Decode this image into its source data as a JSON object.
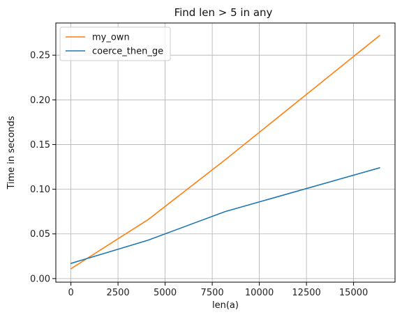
{
  "chart_data": {
    "type": "line",
    "title": "Find len > 5 in any",
    "xlabel": "len(a)",
    "ylabel": "Time in seconds",
    "xlim": [
      -800,
      17200
    ],
    "ylim": [
      -0.004,
      0.286
    ],
    "xticks": [
      0,
      2500,
      5000,
      7500,
      10000,
      12500,
      15000
    ],
    "xtick_labels": [
      "0",
      "2500",
      "5000",
      "7500",
      "10000",
      "12500",
      "15000"
    ],
    "yticks": [
      0.0,
      0.05,
      0.1,
      0.15,
      0.2,
      0.25
    ],
    "ytick_labels": [
      "0.00",
      "0.05",
      "0.10",
      "0.15",
      "0.20",
      "0.25"
    ],
    "grid": true,
    "legend_position": "top-left",
    "series": [
      {
        "name": "my_own",
        "color": "#ff7f0e",
        "x": [
          0,
          4096,
          8192,
          16384
        ],
        "y": [
          0.011,
          0.066,
          0.133,
          0.272
        ]
      },
      {
        "name": "coerce_then_ge",
        "color": "#1f77b4",
        "x": [
          0,
          4096,
          8192,
          16384
        ],
        "y": [
          0.017,
          0.043,
          0.075,
          0.124
        ]
      }
    ]
  }
}
